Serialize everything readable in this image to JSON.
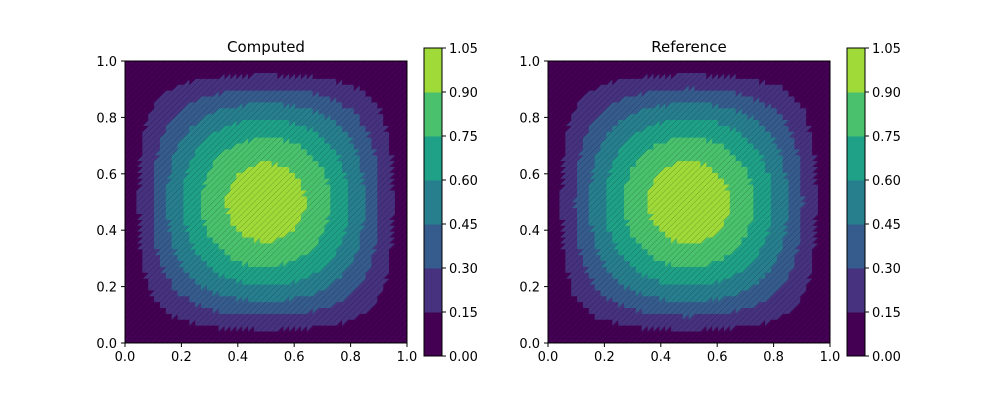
{
  "chart_data": [
    {
      "type": "heatmap",
      "title": "Computed",
      "xlabel": "",
      "ylabel": "",
      "xlim": [
        0.0,
        1.0
      ],
      "ylim": [
        0.0,
        1.0
      ],
      "x_ticks": [
        "0.0",
        "0.2",
        "0.4",
        "0.6",
        "0.8",
        "1.0"
      ],
      "y_ticks": [
        "0.0",
        "0.2",
        "0.4",
        "0.6",
        "0.8",
        "1.0"
      ],
      "field": "approximately sin(pi*x)*sin(pi*y), peak 1.0 at (0.5, 0.5), 0 on boundary",
      "colormap": "viridis",
      "colorbar": {
        "levels": [
          0.0,
          0.15,
          0.3,
          0.45,
          0.6,
          0.75,
          0.9,
          1.05
        ],
        "tick_labels": [
          "0.00",
          "0.15",
          "0.30",
          "0.45",
          "0.60",
          "0.75",
          "0.90",
          "1.05"
        ],
        "colors": [
          "#440154",
          "#46327e",
          "#365c8d",
          "#277f8e",
          "#1fa187",
          "#4ac16d",
          "#a0da39",
          "#d7e219"
        ]
      },
      "grid": false
    },
    {
      "type": "heatmap",
      "title": "Reference",
      "xlabel": "",
      "ylabel": "",
      "xlim": [
        0.0,
        1.0
      ],
      "ylim": [
        0.0,
        1.0
      ],
      "x_ticks": [
        "0.0",
        "0.2",
        "0.4",
        "0.6",
        "0.8",
        "1.0"
      ],
      "y_ticks": [
        "0.0",
        "0.2",
        "0.4",
        "0.6",
        "0.8",
        "1.0"
      ],
      "field": "sin(pi*x)*sin(pi*y), peak 1.0 at (0.5, 0.5), 0 on boundary",
      "colormap": "viridis",
      "colorbar": {
        "levels": [
          0.0,
          0.15,
          0.3,
          0.45,
          0.6,
          0.75,
          0.9,
          1.05
        ],
        "tick_labels": [
          "0.00",
          "0.15",
          "0.30",
          "0.45",
          "0.60",
          "0.75",
          "0.90",
          "1.05"
        ],
        "colors": [
          "#440154",
          "#46327e",
          "#365c8d",
          "#277f8e",
          "#1fa187",
          "#4ac16d",
          "#a0da39",
          "#d7e219"
        ]
      },
      "grid": false
    }
  ]
}
